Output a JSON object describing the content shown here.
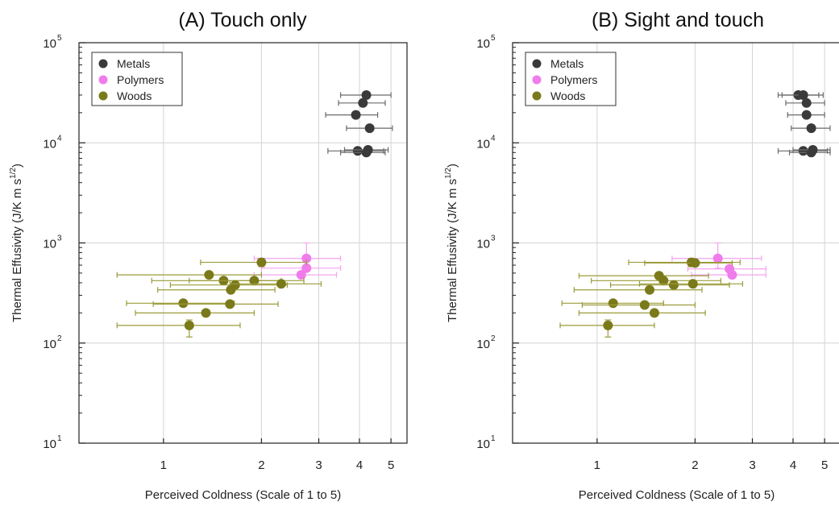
{
  "chart_data": [
    {
      "type": "scatter",
      "title": "(A) Touch only",
      "xlabel": "Perceived Coldness (Scale of 1 to 5)",
      "ylabel": "Thermal Effusivity (J/K m s^1/2)",
      "xscale": "log",
      "yscale": "log",
      "xlim": [
        0.55,
        5.6
      ],
      "ylim": [
        10,
        100000
      ],
      "xticks": [
        {
          "v": 1,
          "label": "1"
        },
        {
          "v": 2,
          "label": "2"
        },
        {
          "v": 3,
          "label": "3"
        },
        {
          "v": 4,
          "label": "4"
        },
        {
          "v": 5,
          "label": "5"
        }
      ],
      "yticks": [
        {
          "v": 10,
          "base": "10",
          "exp": "1"
        },
        {
          "v": 100,
          "base": "10",
          "exp": "2"
        },
        {
          "v": 1000,
          "base": "10",
          "exp": "3"
        },
        {
          "v": 10000,
          "base": "10",
          "exp": "4"
        },
        {
          "v": 100000,
          "base": "10",
          "exp": "5"
        }
      ],
      "grid": true,
      "legend": "top-left",
      "series": [
        {
          "name": "Metals",
          "color": "#3a3a3a",
          "points": [
            {
              "x": 4.2,
              "y": 30000,
              "xlo": 3.5,
              "xhi": 5.0
            },
            {
              "x": 4.1,
              "y": 25000,
              "xlo": 3.45,
              "xhi": 4.8
            },
            {
              "x": 3.9,
              "y": 19000,
              "xlo": 3.15,
              "xhi": 4.55
            },
            {
              "x": 4.3,
              "y": 14000,
              "xlo": 3.65,
              "xhi": 5.05
            },
            {
              "x": 3.95,
              "y": 8300,
              "xlo": 3.2,
              "xhi": 4.75
            },
            {
              "x": 4.2,
              "y": 8000,
              "xlo": 3.5,
              "xhi": 4.8
            },
            {
              "x": 4.25,
              "y": 8500,
              "xlo": 3.6,
              "xhi": 4.9
            }
          ]
        },
        {
          "name": "Polymers",
          "color": "#f07cec",
          "points": [
            {
              "x": 2.75,
              "y": 700,
              "xlo": 1.9,
              "xhi": 3.5,
              "ylo": 560,
              "yhi": 1000
            },
            {
              "x": 2.75,
              "y": 560,
              "xlo": 2.0,
              "xhi": 3.5
            },
            {
              "x": 2.65,
              "y": 480,
              "xlo": 1.9,
              "xhi": 3.4
            }
          ]
        },
        {
          "name": "Woods",
          "color": "#7a7a1a",
          "points": [
            {
              "x": 2.0,
              "y": 640,
              "xlo": 1.3,
              "xhi": 2.75,
              "ylo": 580,
              "yhi": 700
            },
            {
              "x": 1.38,
              "y": 480,
              "xlo": 0.72,
              "xhi": 2.0
            },
            {
              "x": 1.53,
              "y": 420,
              "xlo": 0.92,
              "xhi": 2.3
            },
            {
              "x": 1.9,
              "y": 420,
              "xlo": 1.2,
              "xhi": 2.7
            },
            {
              "x": 1.66,
              "y": 380,
              "xlo": 1.05,
              "xhi": 2.4
            },
            {
              "x": 2.3,
              "y": 390,
              "xlo": 1.6,
              "xhi": 3.05
            },
            {
              "x": 1.61,
              "y": 340,
              "xlo": 0.96,
              "xhi": 2.2
            },
            {
              "x": 1.15,
              "y": 250,
              "xlo": 0.77,
              "xhi": 1.65
            },
            {
              "x": 1.6,
              "y": 245,
              "xlo": 0.93,
              "xhi": 2.25
            },
            {
              "x": 1.35,
              "y": 200,
              "xlo": 0.82,
              "xhi": 1.9
            },
            {
              "x": 1.2,
              "y": 150,
              "xlo": 0.72,
              "xhi": 1.72,
              "ylo": 115,
              "yhi": 170
            }
          ]
        }
      ]
    },
    {
      "type": "scatter",
      "title": "(B) Sight and touch",
      "xlabel": "Perceived Coldness (Scale of 1 to 5)",
      "ylabel": "Thermal Effusivity (J/K m s^1/2)",
      "xscale": "log",
      "yscale": "log",
      "xlim": [
        0.55,
        5.6
      ],
      "ylim": [
        10,
        100000
      ],
      "xticks": [
        {
          "v": 1,
          "label": "1"
        },
        {
          "v": 2,
          "label": "2"
        },
        {
          "v": 3,
          "label": "3"
        },
        {
          "v": 4,
          "label": "4"
        },
        {
          "v": 5,
          "label": "5"
        }
      ],
      "yticks": [
        {
          "v": 10,
          "base": "10",
          "exp": "1"
        },
        {
          "v": 100,
          "base": "10",
          "exp": "2"
        },
        {
          "v": 1000,
          "base": "10",
          "exp": "3"
        },
        {
          "v": 10000,
          "base": "10",
          "exp": "4"
        },
        {
          "v": 100000,
          "base": "10",
          "exp": "5"
        }
      ],
      "grid": true,
      "legend": "top-left",
      "series": [
        {
          "name": "Metals",
          "color": "#3a3a3a",
          "points": [
            {
              "x": 4.15,
              "y": 30000,
              "xlo": 3.6,
              "xhi": 4.8
            },
            {
              "x": 4.3,
              "y": 30000,
              "xlo": 3.7,
              "xhi": 4.95
            },
            {
              "x": 4.4,
              "y": 25000,
              "xlo": 3.8,
              "xhi": 5.0
            },
            {
              "x": 4.4,
              "y": 19000,
              "xlo": 3.85,
              "xhi": 5.0
            },
            {
              "x": 4.55,
              "y": 14000,
              "xlo": 3.95,
              "xhi": 5.2
            },
            {
              "x": 4.3,
              "y": 8300,
              "xlo": 3.6,
              "xhi": 5.1
            },
            {
              "x": 4.55,
              "y": 8000,
              "xlo": 3.9,
              "xhi": 5.2
            },
            {
              "x": 4.6,
              "y": 8500,
              "xlo": 4.0,
              "xhi": 5.2
            }
          ]
        },
        {
          "name": "Polymers",
          "color": "#f07cec",
          "points": [
            {
              "x": 2.35,
              "y": 700,
              "xlo": 1.7,
              "xhi": 3.2,
              "ylo": 560,
              "yhi": 1000
            },
            {
              "x": 2.55,
              "y": 550,
              "xlo": 1.9,
              "xhi": 3.3
            },
            {
              "x": 2.6,
              "y": 480,
              "xlo": 1.95,
              "xhi": 3.3
            }
          ]
        },
        {
          "name": "Woods",
          "color": "#7a7a1a",
          "points": [
            {
              "x": 1.95,
              "y": 640,
              "xlo": 1.25,
              "xhi": 2.75,
              "ylo": 580,
              "yhi": 700
            },
            {
              "x": 2.0,
              "y": 630,
              "xlo": 1.4,
              "xhi": 2.6
            },
            {
              "x": 1.55,
              "y": 470,
              "xlo": 0.88,
              "xhi": 2.2
            },
            {
              "x": 1.6,
              "y": 420,
              "xlo": 0.96,
              "xhi": 2.4
            },
            {
              "x": 1.72,
              "y": 380,
              "xlo": 1.1,
              "xhi": 2.55
            },
            {
              "x": 1.97,
              "y": 390,
              "xlo": 1.35,
              "xhi": 2.8
            },
            {
              "x": 1.45,
              "y": 340,
              "xlo": 0.85,
              "xhi": 2.1
            },
            {
              "x": 1.12,
              "y": 250,
              "xlo": 0.78,
              "xhi": 1.6
            },
            {
              "x": 1.4,
              "y": 240,
              "xlo": 0.9,
              "xhi": 2.0
            },
            {
              "x": 1.5,
              "y": 200,
              "xlo": 0.88,
              "xhi": 2.15
            },
            {
              "x": 1.08,
              "y": 150,
              "xlo": 0.77,
              "xhi": 1.5,
              "ylo": 115,
              "yhi": 170
            }
          ]
        }
      ]
    }
  ]
}
